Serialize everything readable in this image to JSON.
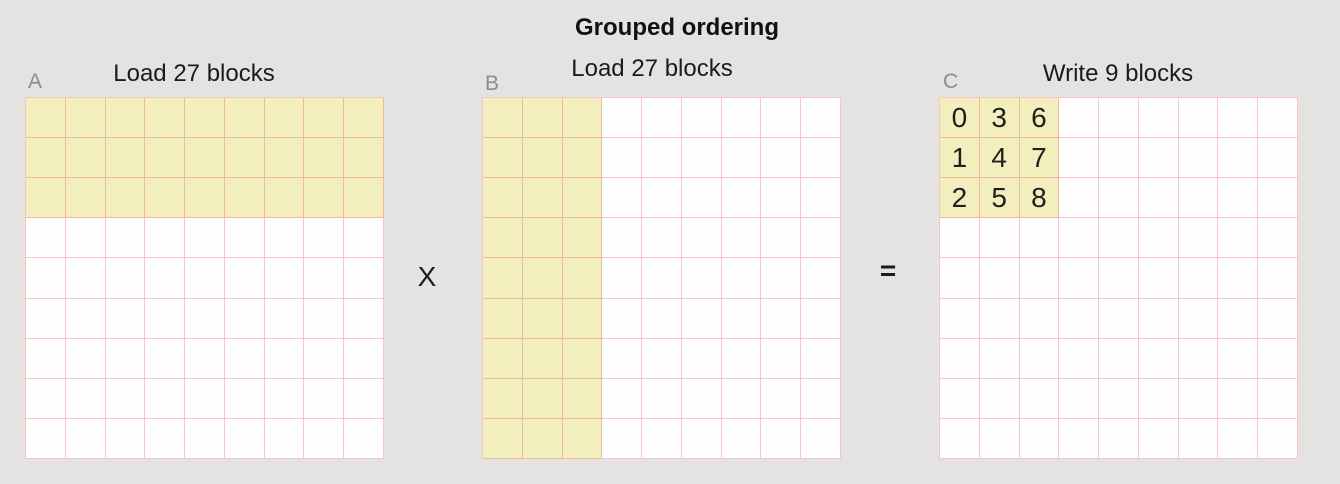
{
  "page": {
    "title": "Grouped ordering"
  },
  "colors": {
    "background": "#e4e3e2",
    "highlight_yellow": "#f2eebd",
    "grid_line_pink": "rgba(235,90,95,0.35)",
    "cell_white": "#fffefe",
    "label_gray": "#8c8c8c",
    "text_black": "#1b1b1b"
  },
  "operators": {
    "multiply": "X",
    "equals": "="
  },
  "grids": [
    {
      "label": "A",
      "title": "Load 27 blocks",
      "rows": 9,
      "cols": 9,
      "highlight_rows": 3,
      "highlight_cols": 9,
      "values": []
    },
    {
      "label": "B",
      "title": "Load 27 blocks",
      "rows": 9,
      "cols": 9,
      "highlight_rows": 9,
      "highlight_cols": 3,
      "values": []
    },
    {
      "label": "C",
      "title": "Write 9 blocks",
      "rows": 9,
      "cols": 9,
      "highlight_rows": 3,
      "highlight_cols": 3,
      "values": [
        [
          "0",
          "3",
          "6"
        ],
        [
          "1",
          "4",
          "7"
        ],
        [
          "2",
          "5",
          "8"
        ]
      ]
    }
  ]
}
